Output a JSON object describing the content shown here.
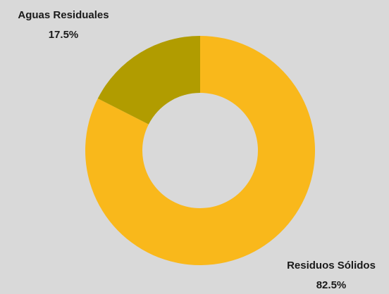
{
  "chart_data": {
    "type": "donut",
    "categories": [
      "Residuos Sólidos",
      "Aguas Residuales"
    ],
    "values": [
      82.5,
      17.5
    ],
    "value_labels": [
      "82.5%",
      "17.5%"
    ],
    "colors": [
      "#f9b81b",
      "#b19c00"
    ]
  }
}
